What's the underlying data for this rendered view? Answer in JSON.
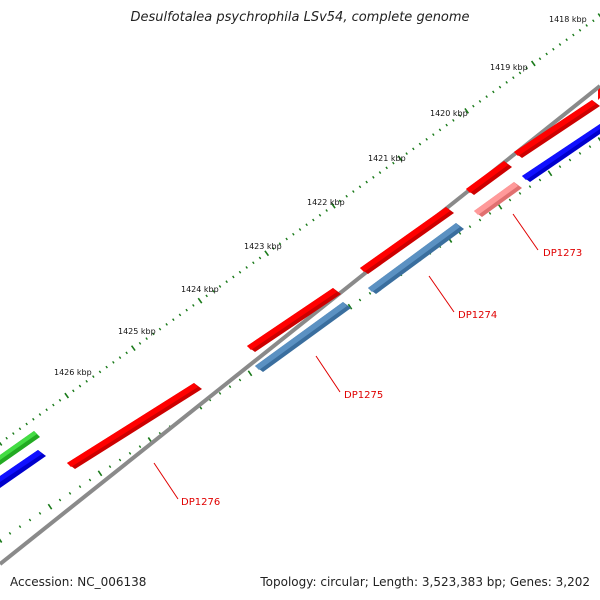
{
  "title": "Desulfotalea psychrophila LSv54, complete genome",
  "footer": {
    "accession": "Accession: NC_006138",
    "stats": "Topology: circular; Length: 3,523,383 bp; Genes: 3,202"
  },
  "kbp_labels": [
    "1418 kbp",
    "1419 kbp",
    "1420 kbp",
    "1421 kbp",
    "1422 kbp",
    "1423 kbp",
    "1424 kbp",
    "1425 kbp",
    "1426 kbp"
  ],
  "gene_labels": [
    "DP1273",
    "DP1274",
    "DP1275",
    "DP1276"
  ],
  "colors": {
    "forward_cds": "#ff0000",
    "reverse_cds": "#0000ff",
    "highlight_forward": "#ff9090",
    "highlight_reverse": "#4f86b8",
    "other": "#33cc33",
    "backbone": "#808080",
    "ticks": "#1a7a1a",
    "gene_label": "#e00000"
  }
}
